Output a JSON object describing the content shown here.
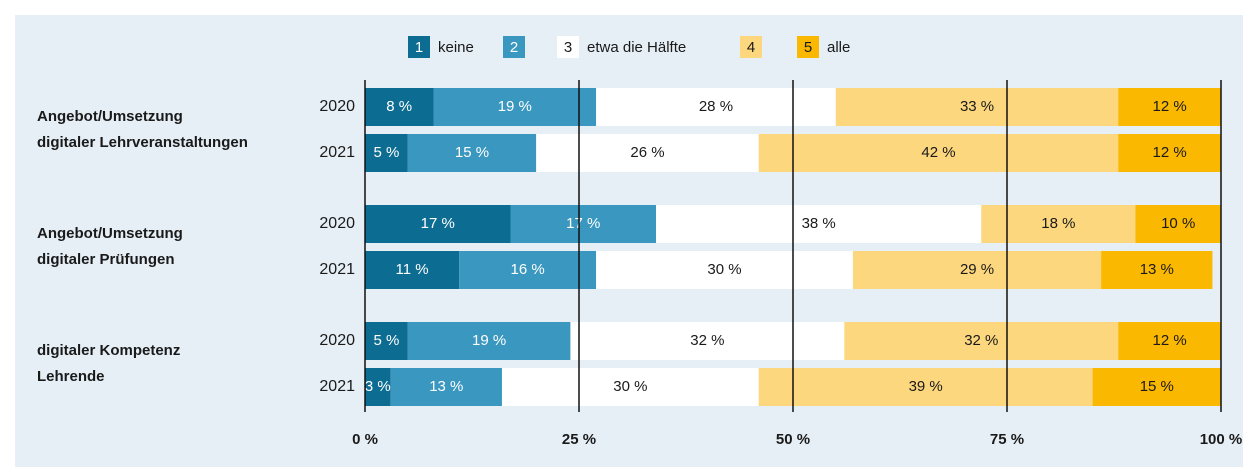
{
  "chart_data": {
    "type": "stacked-barh",
    "categories": [
      "2020",
      "2021",
      "2020",
      "2021",
      "2020",
      "2021"
    ],
    "groups": [
      {
        "label": [
          "Angebot/Umsetzung",
          "digitaler Lehrveranstaltungen"
        ]
      },
      {
        "label": [
          "Angebot/Umsetzung",
          "digitaler Prüfungen"
        ]
      },
      {
        "label": [
          "digitaler Kompetenz",
          "Lehrende"
        ]
      }
    ],
    "series": [
      {
        "key": "1",
        "name": "keine",
        "color": "#0d6c92",
        "label_color": "#ffffff",
        "values": [
          8,
          5,
          17,
          11,
          5,
          3
        ],
        "value_labels": [
          "8 %",
          "5 %",
          "17 %",
          "11 %",
          "5 %",
          "3 %"
        ]
      },
      {
        "key": "2",
        "color": "#3a97bf",
        "label_color": "#ffffff",
        "values": [
          19,
          15,
          17,
          16,
          19,
          13
        ],
        "value_labels": [
          "19 %",
          "15 %",
          "17 %",
          "16 %",
          "19 %",
          "13 %"
        ]
      },
      {
        "key": "3",
        "name": "etwa die Hälfte",
        "color": "#ffffff",
        "label_color": "#1a1a1a",
        "values": [
          28,
          26,
          38,
          30,
          32,
          30
        ],
        "value_labels": [
          "28 %",
          "26 %",
          "38 %",
          "30 %",
          "32 %",
          "30 %"
        ]
      },
      {
        "key": "4",
        "color": "#fdd77e",
        "label_color": "#1a1a1a",
        "values": [
          33,
          42,
          18,
          29,
          32,
          39
        ],
        "value_labels": [
          "33 %",
          "42 %",
          "18 %",
          "29 %",
          "32 %",
          "39 %"
        ]
      },
      {
        "key": "5",
        "name": "alle",
        "color": "#fbb800",
        "label_color": "#1a1a1a",
        "values": [
          12,
          12,
          10,
          13,
          12,
          15
        ],
        "value_labels": [
          "12 %",
          "12 %",
          "10 %",
          "13 %",
          "12 %",
          "15 %"
        ]
      }
    ],
    "xlim": [
      0,
      100
    ],
    "xticks": [
      {
        "value": 0,
        "label": "0 %"
      },
      {
        "value": 25,
        "label": "25 %"
      },
      {
        "value": 50,
        "label": "50 %"
      },
      {
        "value": 75,
        "label": "75 %"
      },
      {
        "value": 100,
        "label": "100 %"
      }
    ],
    "grid": true
  }
}
